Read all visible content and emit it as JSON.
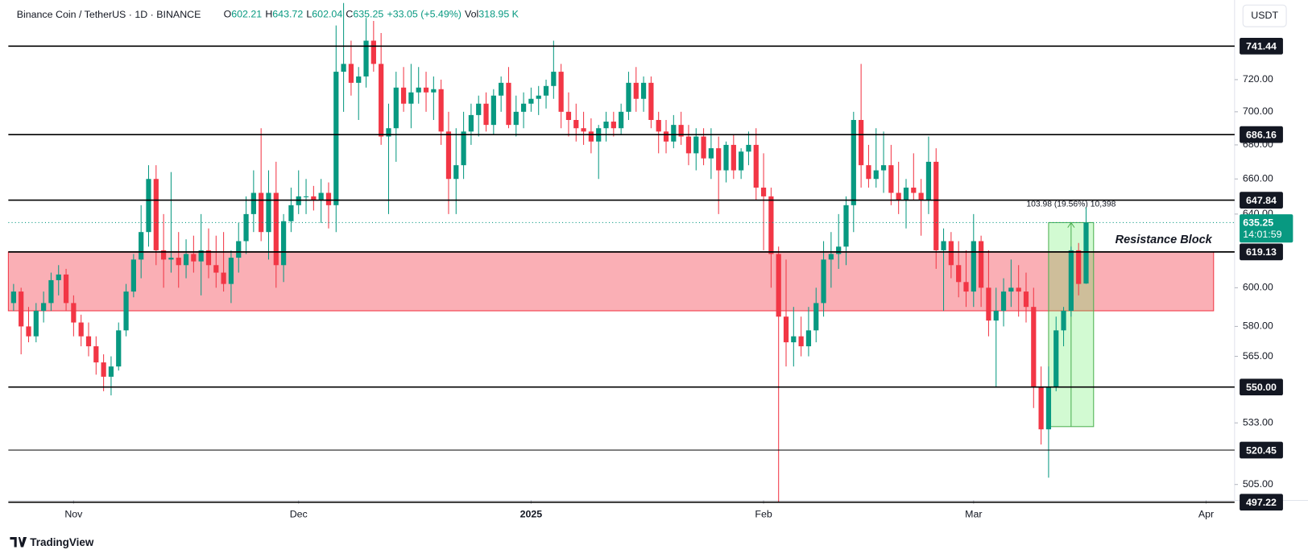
{
  "chart_data": {
    "type": "candlestick",
    "symbol": "Binance Coin / TetherUS · 1D · BINANCE",
    "legend_labels": {
      "o": "O",
      "h": "H",
      "l": "L",
      "c": "C",
      "vol": "Vol"
    },
    "change": "+33.05 (+5.49%)",
    "volume": "318.95 K",
    "currency": "USDT",
    "brand": "TradingView",
    "up_color": "#089981",
    "down_color": "#f23645",
    "log_scale": true,
    "ylim": [
      498,
      772
    ],
    "xlim": [
      -0.7,
      162.8
    ],
    "yticks": [
      {
        "value": 505,
        "label": "505.00"
      },
      {
        "value": 533,
        "label": "533.00"
      },
      {
        "value": 565,
        "label": "565.00"
      },
      {
        "value": 580,
        "label": "580.00"
      },
      {
        "value": 600,
        "label": "600.00"
      },
      {
        "value": 640,
        "label": "640.00"
      },
      {
        "value": 660,
        "label": "660.00"
      },
      {
        "value": 680,
        "label": "680.00"
      },
      {
        "value": 700,
        "label": "700.00"
      },
      {
        "value": 720,
        "label": "720.00"
      }
    ],
    "xticks": [
      {
        "value": 8,
        "label": "Nov"
      },
      {
        "value": 38,
        "label": "Dec"
      },
      {
        "value": 69,
        "label": "2025"
      },
      {
        "value": 100,
        "label": "Feb"
      },
      {
        "value": 128,
        "label": "Mar"
      },
      {
        "value": 159,
        "label": "Apr"
      }
    ],
    "levels": [
      741.44,
      686.16,
      647.84,
      619.13,
      {
        "value": 550,
        "label": "550.00"
      },
      520.45,
      497.22
    ],
    "last_price": {
      "countdown": "14:01:59"
    },
    "zone": {
      "label": "Resistance Block",
      "low": 588,
      "high": 619.13,
      "x_end": 160
    },
    "measure": {
      "label": "103.98 (19.56%) 10,398",
      "from": 531.27,
      "to": 635.25,
      "x_from": 138,
      "x_to": 144
    },
    "ohlc": [
      [
        592,
        602,
        588,
        598
      ],
      [
        598,
        600,
        566,
        580
      ],
      [
        580,
        590,
        572,
        575
      ],
      [
        575,
        592,
        572,
        588
      ],
      [
        588,
        598,
        582,
        592
      ],
      [
        592,
        608,
        588,
        604
      ],
      [
        604,
        612,
        596,
        607
      ],
      [
        607,
        610,
        588,
        592
      ],
      [
        592,
        596,
        575,
        582
      ],
      [
        582,
        586,
        570,
        575
      ],
      [
        575,
        582,
        565,
        570
      ],
      [
        570,
        575,
        556,
        562
      ],
      [
        562,
        566,
        548,
        555
      ],
      [
        555,
        565,
        546,
        560
      ],
      [
        560,
        582,
        558,
        578
      ],
      [
        578,
        602,
        575,
        598
      ],
      [
        598,
        618,
        595,
        615
      ],
      [
        615,
        645,
        605,
        630
      ],
      [
        630,
        668,
        622,
        660
      ],
      [
        660,
        668,
        612,
        620
      ],
      [
        620,
        640,
        600,
        615
      ],
      [
        615,
        664,
        608,
        616
      ],
      [
        616,
        630,
        600,
        612
      ],
      [
        612,
        626,
        605,
        618
      ],
      [
        618,
        628,
        608,
        614
      ],
      [
        614,
        640,
        596,
        620
      ],
      [
        620,
        632,
        605,
        612
      ],
      [
        612,
        628,
        600,
        608
      ],
      [
        608,
        630,
        598,
        602
      ],
      [
        602,
        620,
        592,
        616
      ],
      [
        616,
        635,
        608,
        625
      ],
      [
        625,
        650,
        618,
        640
      ],
      [
        640,
        665,
        630,
        652
      ],
      [
        652,
        690,
        625,
        630
      ],
      [
        630,
        665,
        615,
        652
      ],
      [
        652,
        670,
        600,
        612
      ],
      [
        612,
        640,
        603,
        636
      ],
      [
        636,
        655,
        630,
        645
      ],
      [
        645,
        665,
        640,
        650
      ],
      [
        650,
        660,
        640,
        650
      ],
      [
        650,
        656,
        642,
        648
      ],
      [
        648,
        660,
        635,
        652
      ],
      [
        652,
        658,
        632,
        645
      ],
      [
        645,
        755,
        630,
        725
      ],
      [
        725,
        770,
        700,
        730
      ],
      [
        730,
        745,
        710,
        718
      ],
      [
        718,
        728,
        695,
        722
      ],
      [
        722,
        760,
        715,
        745
      ],
      [
        745,
        758,
        725,
        730
      ],
      [
        730,
        750,
        680,
        685
      ],
      [
        685,
        705,
        640,
        690
      ],
      [
        690,
        725,
        670,
        715
      ],
      [
        715,
        728,
        700,
        705
      ],
      [
        705,
        730,
        690,
        712
      ],
      [
        712,
        728,
        705,
        715
      ],
      [
        715,
        725,
        700,
        712
      ],
      [
        712,
        722,
        695,
        714
      ],
      [
        714,
        720,
        680,
        688
      ],
      [
        688,
        700,
        640,
        660
      ],
      [
        660,
        690,
        640,
        668
      ],
      [
        668,
        700,
        660,
        688
      ],
      [
        688,
        705,
        680,
        698
      ],
      [
        698,
        710,
        685,
        705
      ],
      [
        705,
        712,
        688,
        692
      ],
      [
        692,
        714,
        686,
        710
      ],
      [
        710,
        722,
        700,
        718
      ],
      [
        718,
        728,
        690,
        692
      ],
      [
        692,
        710,
        685,
        700
      ],
      [
        700,
        712,
        690,
        705
      ],
      [
        705,
        715,
        700,
        708
      ],
      [
        708,
        716,
        698,
        710
      ],
      [
        710,
        720,
        702,
        716
      ],
      [
        716,
        745,
        708,
        725
      ],
      [
        725,
        730,
        690,
        700
      ],
      [
        700,
        712,
        685,
        695
      ],
      [
        695,
        705,
        682,
        690
      ],
      [
        690,
        700,
        680,
        688
      ],
      [
        688,
        696,
        675,
        682
      ],
      [
        682,
        692,
        660,
        690
      ],
      [
        690,
        700,
        682,
        694
      ],
      [
        694,
        700,
        685,
        690
      ],
      [
        690,
        705,
        686,
        700
      ],
      [
        700,
        725,
        695,
        718
      ],
      [
        718,
        728,
        700,
        708
      ],
      [
        708,
        722,
        700,
        718
      ],
      [
        718,
        722,
        690,
        695
      ],
      [
        695,
        700,
        675,
        688
      ],
      [
        688,
        695,
        675,
        682
      ],
      [
        682,
        698,
        678,
        692
      ],
      [
        692,
        700,
        680,
        685
      ],
      [
        685,
        692,
        668,
        675
      ],
      [
        675,
        690,
        665,
        685
      ],
      [
        685,
        690,
        668,
        672
      ],
      [
        672,
        690,
        660,
        678
      ],
      [
        678,
        685,
        640,
        665
      ],
      [
        665,
        682,
        658,
        680
      ],
      [
        680,
        686,
        660,
        665
      ],
      [
        665,
        678,
        660,
        676
      ],
      [
        676,
        688,
        668,
        680
      ],
      [
        680,
        690,
        648,
        655
      ],
      [
        655,
        675,
        620,
        650
      ],
      [
        650,
        655,
        600,
        618
      ],
      [
        618,
        622,
        497,
        585
      ],
      [
        585,
        615,
        560,
        572
      ],
      [
        572,
        590,
        560,
        575
      ],
      [
        575,
        585,
        565,
        570
      ],
      [
        570,
        590,
        565,
        578
      ],
      [
        578,
        600,
        572,
        592
      ],
      [
        592,
        625,
        585,
        615
      ],
      [
        615,
        630,
        600,
        618
      ],
      [
        618,
        640,
        610,
        622
      ],
      [
        622,
        650,
        612,
        645
      ],
      [
        645,
        700,
        630,
        695
      ],
      [
        695,
        730,
        655,
        668
      ],
      [
        668,
        680,
        655,
        660
      ],
      [
        660,
        690,
        655,
        665
      ],
      [
        665,
        688,
        652,
        668
      ],
      [
        668,
        680,
        645,
        652
      ],
      [
        652,
        670,
        640,
        648
      ],
      [
        648,
        660,
        632,
        655
      ],
      [
        655,
        675,
        648,
        652
      ],
      [
        652,
        660,
        628,
        648
      ],
      [
        648,
        685,
        640,
        670
      ],
      [
        670,
        678,
        610,
        620
      ],
      [
        620,
        632,
        588,
        625
      ],
      [
        625,
        630,
        605,
        612
      ],
      [
        612,
        625,
        595,
        603
      ],
      [
        603,
        620,
        590,
        598
      ],
      [
        598,
        640,
        590,
        625
      ],
      [
        625,
        628,
        590,
        600
      ],
      [
        600,
        620,
        575,
        583
      ],
      [
        583,
        600,
        550,
        588
      ],
      [
        588,
        605,
        580,
        598
      ],
      [
        598,
        615,
        590,
        600
      ],
      [
        600,
        612,
        585,
        598
      ],
      [
        598,
        608,
        582,
        590
      ],
      [
        590,
        600,
        540,
        550
      ],
      [
        550,
        560,
        523,
        530
      ],
      [
        530,
        560,
        508,
        550
      ],
      [
        550,
        585,
        548,
        578
      ],
      [
        578,
        590,
        570,
        588
      ],
      [
        588,
        622,
        585,
        620
      ],
      [
        620,
        624,
        596,
        602
      ],
      [
        602.21,
        643.72,
        602.04,
        635.25
      ]
    ]
  }
}
